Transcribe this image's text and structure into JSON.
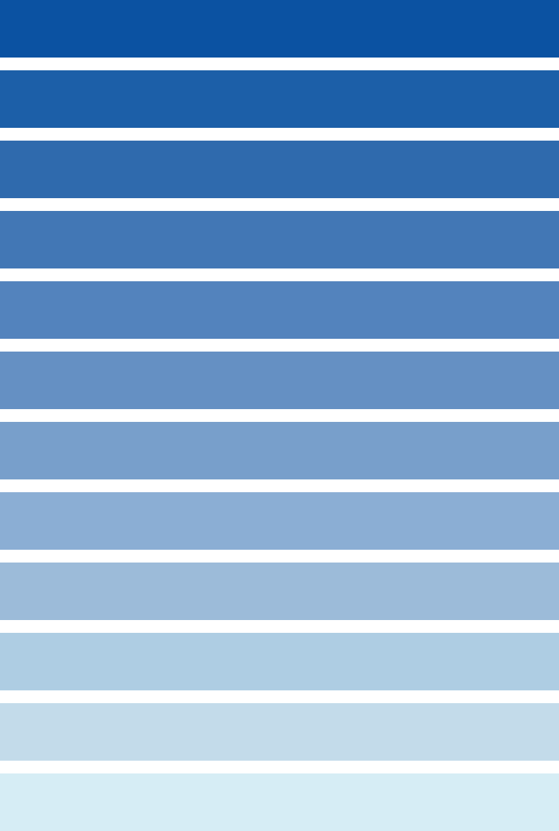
{
  "swatches": [
    {
      "color": "#0b52a2"
    },
    {
      "color": "#1c5fa8"
    },
    {
      "color": "#2f6aad"
    },
    {
      "color": "#4277b5"
    },
    {
      "color": "#5383bd"
    },
    {
      "color": "#6590c3"
    },
    {
      "color": "#789fcb"
    },
    {
      "color": "#8baed4"
    },
    {
      "color": "#9cbbd9"
    },
    {
      "color": "#aecde3"
    },
    {
      "color": "#c3dbea"
    },
    {
      "color": "#d6edf5"
    }
  ]
}
